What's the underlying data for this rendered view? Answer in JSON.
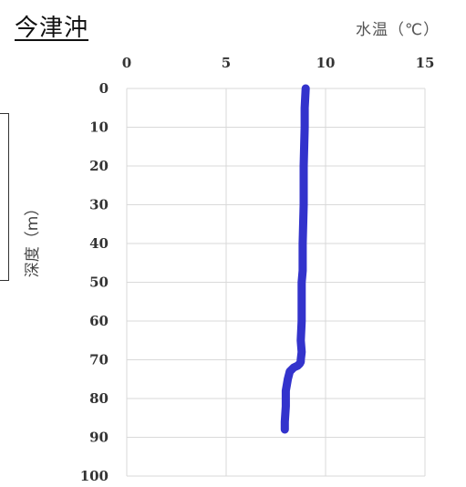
{
  "title": "今津沖",
  "unit_label": "水温（℃）",
  "chart_data": {
    "type": "line",
    "title": "今津沖",
    "xlabel": "水温（℃）",
    "ylabel": "深度（m）",
    "xlim": [
      0,
      15
    ],
    "ylim": [
      0,
      100
    ],
    "y_inverted": true,
    "x_axis_position": "top",
    "grid": true,
    "xticks": [
      0,
      5,
      10,
      15
    ],
    "yticks": [
      0,
      10,
      20,
      30,
      40,
      50,
      60,
      70,
      80,
      90,
      100
    ],
    "line_color": "#3333cc",
    "series": [
      {
        "temperature": [
          9.0,
          8.95,
          8.95,
          8.9,
          8.9,
          8.85,
          8.85,
          8.8,
          8.8,
          8.75,
          8.8,
          8.75,
          8.75,
          8.7,
          8.6,
          8.4,
          8.2,
          8.1,
          8.0,
          8.0,
          7.95,
          7.95
        ],
        "depth": [
          0,
          5,
          10,
          20,
          30,
          40,
          47,
          50,
          60,
          65,
          68,
          70,
          70.5,
          71,
          71.5,
          72,
          73,
          75,
          78,
          82,
          86,
          88
        ]
      }
    ]
  }
}
